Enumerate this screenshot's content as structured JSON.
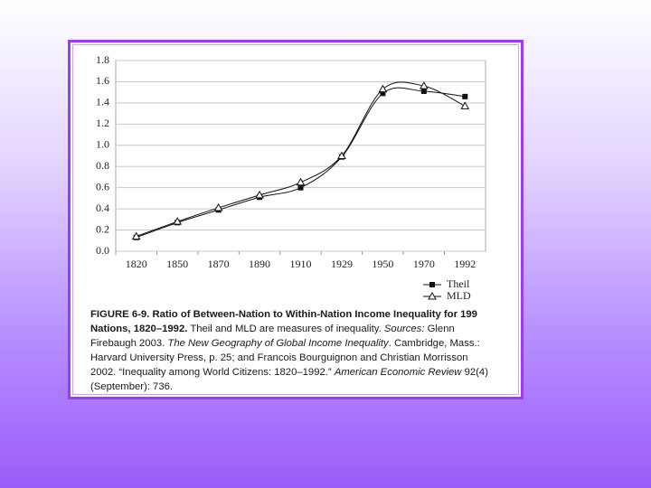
{
  "chart_data": {
    "type": "line",
    "categories": [
      "1820",
      "1850",
      "1870",
      "1890",
      "1910",
      "1929",
      "1950",
      "1970",
      "1992"
    ],
    "series": [
      {
        "name": "Theil",
        "color": "#111111",
        "marker": "square",
        "values": [
          0.13,
          0.27,
          0.39,
          0.51,
          0.6,
          0.89,
          1.49,
          1.51,
          1.46
        ]
      },
      {
        "name": "MLD",
        "color": "#111111",
        "marker": "triangle",
        "values": [
          0.14,
          0.28,
          0.41,
          0.53,
          0.65,
          0.9,
          1.53,
          1.56,
          1.37
        ]
      }
    ],
    "ylim": [
      0,
      1.8
    ],
    "yticks": [
      {
        "value": 0,
        "label": "0.0"
      },
      0.2,
      0.4,
      0.6,
      0.8,
      {
        "value": 1,
        "label": "1.0"
      },
      1.2,
      1.4,
      1.6,
      1.8
    ],
    "grid": true,
    "legend": "bottom-right",
    "caption": {
      "parts": [
        "FIGURE 6-9.",
        "Ratio of Between-Nation to Within-Nation Income Inequality for 199 Nations, 1820–1992.",
        "Theil and MLD are measures of inequality.",
        "Sources:",
        "Glenn Firebaugh 2003.",
        "The New Geography of Global Income Inequality",
        ". Cambridge, Mass.: Harvard University Press, p. 25; and Francois Bourguignon and Christian Morrisson 2002. “Inequality among World Citizens: 1820–1992.”",
        "American Economic Review",
        "92(4) (September): 736."
      ]
    }
  }
}
